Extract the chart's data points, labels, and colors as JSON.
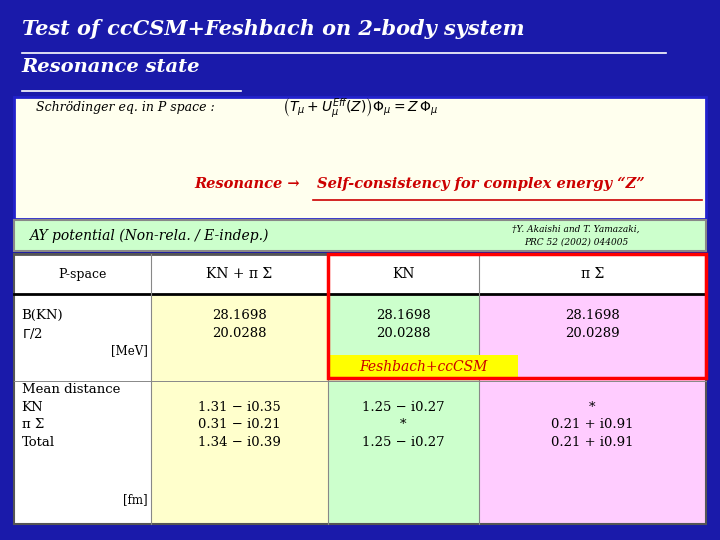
{
  "bg_color": "#1a1aaa",
  "title1": "Test of ccCSM+Feshbach on 2-body system",
  "title2": "Resonance state",
  "title_color": "white",
  "schrodinger_label": "Schrödinger eq. in P space :",
  "resonance_text1": "Resonance →",
  "resonance_text2": "Self-consistency for complex energy “Z”",
  "ay_potential": "AY potential (Non-rela. / E-indep.)",
  "reference": "†Y. Akaishi and T. Yamazaki,\nPRC 52 (2002) 044005",
  "col_headers": [
    "P-space",
    "KN + π Σ",
    "KN",
    "π Σ"
  ],
  "row1_label": "B(KN)",
  "row2_label": "Γ/2",
  "unit_mev": "[MeV]",
  "row_values": [
    [
      "28.1698",
      "28.1698",
      "28.1698"
    ],
    [
      "20.0288",
      "20.0288",
      "20.0289"
    ]
  ],
  "mean_dist_label": "Mean distance",
  "dist_rows": [
    [
      "KN",
      "1.31 − i0.35",
      "1.25 − i0.27",
      "*"
    ],
    [
      "π Σ",
      "0.31 − i0.21",
      "*",
      "0.21 + i0.91"
    ],
    [
      "Total",
      "1.34 − i0.39",
      "1.25 − i0.27",
      "0.21 + i0.91"
    ]
  ],
  "unit_fm": "[fm]",
  "feshbach_label": "Feshbach+ccCSM",
  "col0_color": "white",
  "col1_color": "#ffffcc",
  "col2_color": "#ccffcc",
  "col3_color": "#ffccff",
  "ay_bg": "#ccffcc",
  "schrodinger_bg": "#ffffee"
}
